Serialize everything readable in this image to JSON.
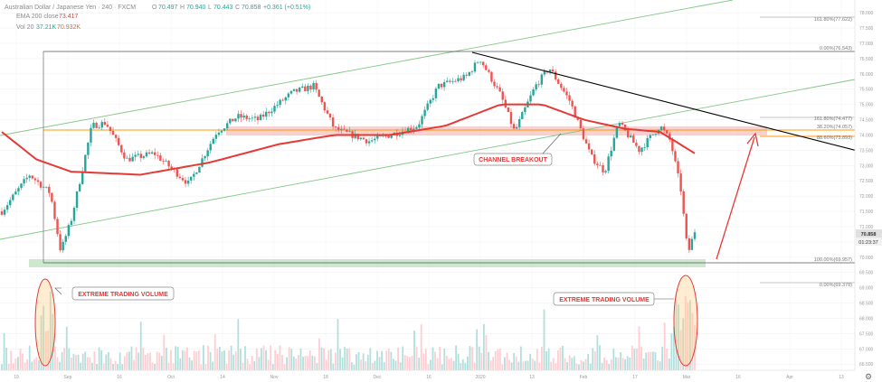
{
  "header": {
    "symbol": "Australian Dollar / Japanese Yen · 240 · FXCM",
    "ohlc": {
      "o": "70.497",
      "h": "70.940",
      "l": "70.443",
      "c": "70.858",
      "change": "+0.361 (+0.51%)"
    },
    "ema_label": "EMA 200 close",
    "ema_value": "73.417",
    "vol_label": "Vol 20",
    "vol_value": "37.21K",
    "vol_ma": "70.932K"
  },
  "price_axis": {
    "ticks": [
      "78.000",
      "77.500",
      "77.000",
      "76.500",
      "76.000",
      "75.500",
      "75.000",
      "74.500",
      "74.000",
      "73.500",
      "73.000",
      "72.500",
      "72.000",
      "71.500",
      "71.000",
      "70.500",
      "70.000",
      "69.500",
      "69.000",
      "68.500",
      "68.000",
      "67.500",
      "67.000",
      "66.500"
    ],
    "last_price": "70.858",
    "countdown": "01:23:37"
  },
  "time_axis": [
    "19",
    "Sep",
    "16",
    "Oct",
    "14",
    "Nov",
    "18",
    "Dec",
    "16",
    "2020",
    "13",
    "Feb",
    "17",
    "Mar",
    "16",
    "Apr",
    "13"
  ],
  "fib_levels": [
    {
      "label": "161.80%(77.622)",
      "price": 77.622
    },
    {
      "label": "0.00%(76.543)",
      "price": 76.543
    },
    {
      "label": "161.80%(74.477)",
      "price": 74.477
    },
    {
      "label": "38.20%(74.057)",
      "price": 74.057
    },
    {
      "label": "88.60%(73.893)",
      "price": 73.893
    },
    {
      "label": "100.00%(69.957)",
      "price": 69.957
    },
    {
      "label": "0.00%(69.378)",
      "price": 69.378
    }
  ],
  "annotations": {
    "channel": "CHANNEL BREAKOUT",
    "volume_left": "EXTREME TRADING VOLUME",
    "volume_right": "EXTREME TRADING VOLUME"
  },
  "colors": {
    "up": "#26a69a",
    "down": "#ef5350",
    "ema": "#e53935",
    "channel": "#81c784",
    "trend": "#000000",
    "fib": "#ff9800",
    "zone": "#a5d6a7",
    "annotation": "#e53935"
  },
  "chart_data": {
    "type": "candlestick",
    "title": "Australian Dollar / Japanese Yen · 240 · FXCM",
    "y_range": [
      66.3,
      78.3
    ],
    "price_path": [
      [
        0,
        71.5
      ],
      [
        0.04,
        72.7
      ],
      [
        0.07,
        72.1
      ],
      [
        0.085,
        70.2
      ],
      [
        0.1,
        71.2
      ],
      [
        0.13,
        74.3
      ],
      [
        0.15,
        74.4
      ],
      [
        0.18,
        73.2
      ],
      [
        0.22,
        73.4
      ],
      [
        0.27,
        72.4
      ],
      [
        0.31,
        74.1
      ],
      [
        0.34,
        74.6
      ],
      [
        0.37,
        74.5
      ],
      [
        0.42,
        75.4
      ],
      [
        0.45,
        75.6
      ],
      [
        0.48,
        74.2
      ],
      [
        0.53,
        73.8
      ],
      [
        0.56,
        74.0
      ],
      [
        0.6,
        74.3
      ],
      [
        0.63,
        75.6
      ],
      [
        0.67,
        75.9
      ],
      [
        0.69,
        76.5
      ],
      [
        0.72,
        75.3
      ],
      [
        0.74,
        74.1
      ],
      [
        0.77,
        75.6
      ],
      [
        0.79,
        76.2
      ],
      [
        0.82,
        75.1
      ],
      [
        0.85,
        73.3
      ],
      [
        0.87,
        72.8
      ],
      [
        0.89,
        74.4
      ],
      [
        0.92,
        73.5
      ],
      [
        0.95,
        74.3
      ],
      [
        0.965,
        73.8
      ],
      [
        0.98,
        72.2
      ],
      [
        0.99,
        70.1
      ],
      [
        1.0,
        70.86
      ]
    ],
    "ema200_path": [
      [
        0,
        74.1
      ],
      [
        0.05,
        73.2
      ],
      [
        0.1,
        72.8
      ],
      [
        0.2,
        72.7
      ],
      [
        0.3,
        73.1
      ],
      [
        0.4,
        73.7
      ],
      [
        0.48,
        74.0
      ],
      [
        0.56,
        74.0
      ],
      [
        0.64,
        74.3
      ],
      [
        0.72,
        75.0
      ],
      [
        0.78,
        75.0
      ],
      [
        0.84,
        74.5
      ],
      [
        0.9,
        74.2
      ],
      [
        0.95,
        74.1
      ],
      [
        1.0,
        73.4
      ]
    ],
    "volume": {
      "ma": "70.932K",
      "last": "37.21K"
    }
  }
}
